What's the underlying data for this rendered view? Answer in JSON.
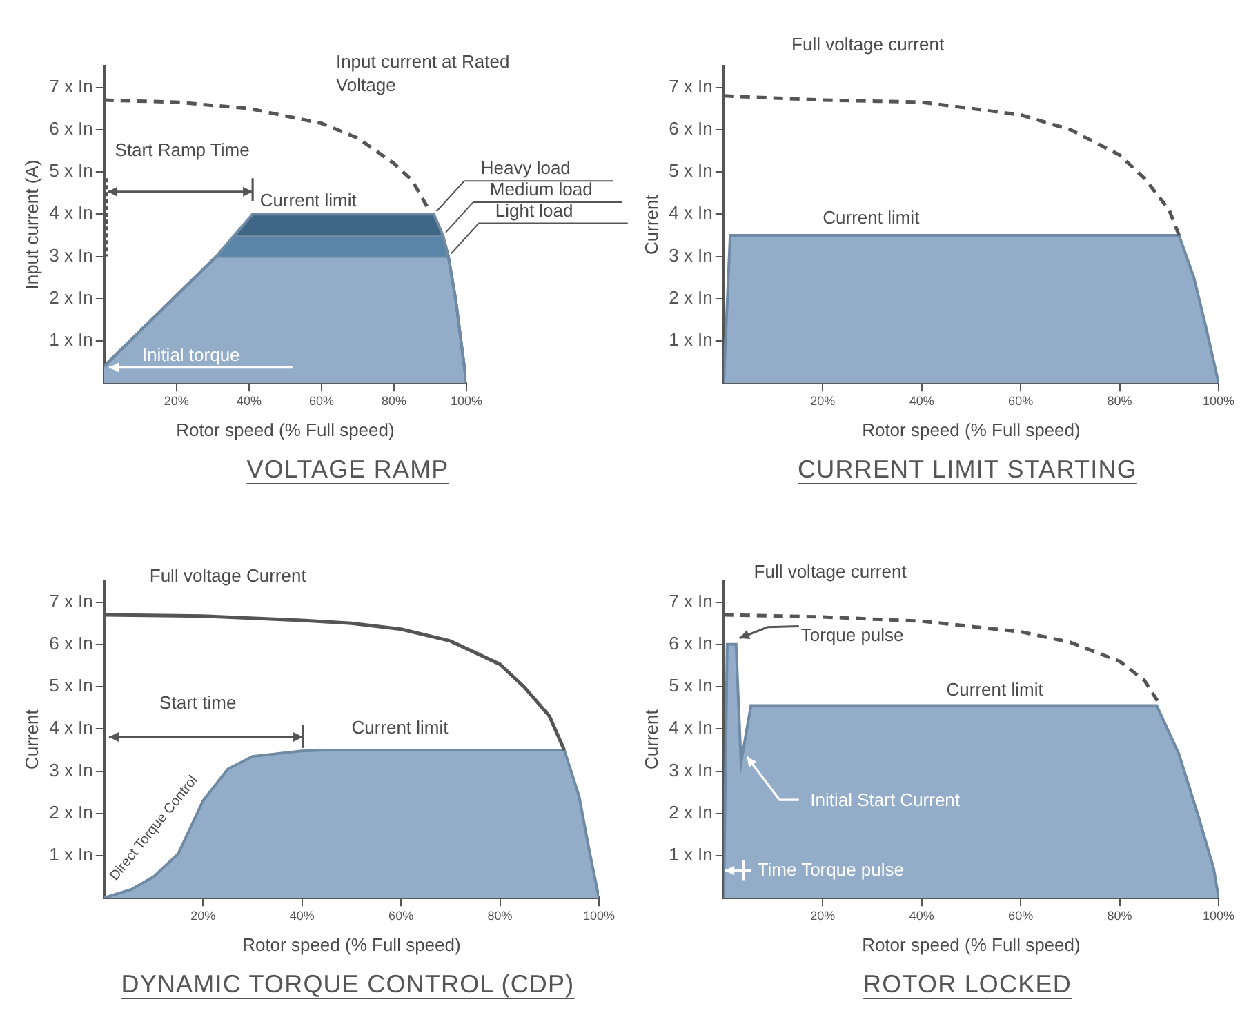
{
  "chart_data": [
    {
      "type": "area",
      "title": "VOLTAGE RAMP",
      "xlabel": "Rotor speed (% Full speed)",
      "ylabel": "Input current (A)",
      "xlim": [
        0,
        100
      ],
      "xticks": [
        {
          "value": 20,
          "label": "20%"
        },
        {
          "value": 40,
          "label": "40%"
        },
        {
          "value": 60,
          "label": "60%"
        },
        {
          "value": 80,
          "label": "80%"
        },
        {
          "value": 100,
          "label": "100%"
        }
      ],
      "ylim": [
        0,
        7.5
      ],
      "yticks": [
        {
          "value": 1,
          "label": "1 x In"
        },
        {
          "value": 2,
          "label": "2 x In"
        },
        {
          "value": 3,
          "label": "3 x In"
        },
        {
          "value": 4,
          "label": "4 x In"
        },
        {
          "value": 5,
          "label": "5 x In"
        },
        {
          "value": 6,
          "label": "6 x In"
        },
        {
          "value": 7,
          "label": "7 x In"
        }
      ],
      "series": [
        {
          "type": "line",
          "line_style": "dashed",
          "color": "#555555",
          "x": [
            0,
            20,
            40,
            60,
            70,
            80,
            85,
            90
          ],
          "values": [
            6.7,
            6.65,
            6.5,
            6.15,
            5.8,
            5.2,
            4.8,
            4.05
          ]
        },
        {
          "name": "Heavy load",
          "color": "#3f6685",
          "x": [
            0,
            31,
            36,
            41,
            91,
            93.5,
            95,
            97,
            98.5,
            100
          ],
          "values": [
            0.4,
            3,
            3.5,
            4,
            4,
            3.5,
            3,
            2,
            1,
            0
          ]
        },
        {
          "name": "Medium load",
          "color": "#5a85a8",
          "x": [
            0,
            31,
            36,
            41,
            91,
            93.5,
            95,
            97,
            98.5,
            100
          ],
          "values": [
            0.4,
            3,
            3.5,
            3.5,
            3.5,
            3.5,
            3,
            2,
            1,
            0
          ]
        },
        {
          "name": "Light load",
          "color": "#93adc9",
          "x": [
            0,
            31,
            36,
            41,
            91,
            93.5,
            95,
            97,
            98.5,
            100
          ],
          "values": [
            0.4,
            3,
            3,
            3,
            3,
            3,
            3,
            2,
            1,
            0
          ]
        }
      ],
      "annotations": [
        "Input current at Rated Voltage",
        "Start Ramp Time",
        "Current limit",
        "Initial torque"
      ]
    },
    {
      "type": "area",
      "title": "CURRENT LIMIT STARTING",
      "xlabel": "Rotor speed (% Full speed)",
      "ylabel": "Current",
      "xlim": [
        0,
        100
      ],
      "xticks": [
        {
          "value": 20,
          "label": "20%"
        },
        {
          "value": 40,
          "label": "40%"
        },
        {
          "value": 60,
          "label": "60%"
        },
        {
          "value": 80,
          "label": "80%"
        },
        {
          "value": 100,
          "label": "100%"
        }
      ],
      "ylim": [
        0,
        7.5
      ],
      "yticks": [
        {
          "value": 1,
          "label": "1 x In"
        },
        {
          "value": 2,
          "label": "2 x In"
        },
        {
          "value": 3,
          "label": "3 x In"
        },
        {
          "value": 4,
          "label": "4 x In"
        },
        {
          "value": 5,
          "label": "5 x In"
        },
        {
          "value": 6,
          "label": "6 x In"
        },
        {
          "value": 7,
          "label": "7 x In"
        }
      ],
      "series": [
        {
          "type": "line",
          "line_style": "dashed",
          "color": "#555555",
          "x": [
            0,
            20,
            40,
            60,
            70,
            80,
            85,
            90,
            92
          ],
          "values": [
            6.8,
            6.7,
            6.65,
            6.35,
            6.0,
            5.4,
            4.85,
            4.1,
            3.5
          ]
        },
        {
          "color": "#93adc9",
          "x": [
            0,
            1.3,
            92,
            95,
            97.5,
            100
          ],
          "values": [
            0,
            3.5,
            3.5,
            2.5,
            1.3,
            0
          ]
        }
      ],
      "annotations": [
        "Full voltage current",
        "Current limit"
      ]
    },
    {
      "type": "area",
      "title": "DYNAMIC TORQUE CONTROL (CDP)",
      "xlabel": "Rotor speed (% Full speed)",
      "ylabel": "Current",
      "xlim": [
        0,
        100
      ],
      "xticks": [
        {
          "value": 20,
          "label": "20%"
        },
        {
          "value": 40,
          "label": "40%"
        },
        {
          "value": 60,
          "label": "60%"
        },
        {
          "value": 80,
          "label": "80%"
        },
        {
          "value": 100,
          "label": "100%"
        }
      ],
      "ylim": [
        0,
        7.5
      ],
      "yticks": [
        {
          "value": 1,
          "label": "1 x In"
        },
        {
          "value": 2,
          "label": "2 x In"
        },
        {
          "value": 3,
          "label": "3 x In"
        },
        {
          "value": 4,
          "label": "4 x In"
        },
        {
          "value": 5,
          "label": "5 x In"
        },
        {
          "value": 6,
          "label": "6 x In"
        },
        {
          "value": 7,
          "label": "7 x In"
        }
      ],
      "series": [
        {
          "type": "line",
          "line_style": "solid",
          "color": "#555555",
          "x": [
            0,
            20,
            40,
            50,
            60,
            70,
            80,
            85,
            90,
            93
          ],
          "values": [
            6.7,
            6.67,
            6.57,
            6.5,
            6.36,
            6.08,
            5.53,
            4.98,
            4.3,
            3.5
          ]
        },
        {
          "color": "#93adc9",
          "x": [
            0,
            5.5,
            10,
            15,
            18,
            20,
            25,
            30,
            40,
            45,
            93,
            96,
            98,
            100
          ],
          "values": [
            0,
            0.2,
            0.5,
            1.05,
            1.8,
            2.3,
            3.05,
            3.35,
            3.48,
            3.5,
            3.5,
            2.4,
            1.15,
            0
          ]
        }
      ],
      "annotations": [
        "Full voltage Current",
        "Start time",
        "Current limit",
        "Direct Torque Control"
      ]
    },
    {
      "type": "area",
      "title": "ROTOR LOCKED",
      "xlabel": "Rotor speed (% Full speed)",
      "ylabel": "Current",
      "xlim": [
        0,
        100
      ],
      "xticks": [
        {
          "value": 20,
          "label": "20%"
        },
        {
          "value": 40,
          "label": "40%"
        },
        {
          "value": 60,
          "label": "60%"
        },
        {
          "value": 80,
          "label": "80%"
        },
        {
          "value": 100,
          "label": "100%"
        }
      ],
      "ylim": [
        0,
        7.5
      ],
      "yticks": [
        {
          "value": 1,
          "label": "1 x In"
        },
        {
          "value": 2,
          "label": "2 x In"
        },
        {
          "value": 3,
          "label": "3 x In"
        },
        {
          "value": 4,
          "label": "4 x In"
        },
        {
          "value": 5,
          "label": "5 x In"
        },
        {
          "value": 6,
          "label": "6 x In"
        },
        {
          "value": 7,
          "label": "7 x In"
        }
      ],
      "series": [
        {
          "type": "line",
          "line_style": "dashed",
          "color": "#555555",
          "x": [
            0,
            20,
            40,
            60,
            70,
            80,
            85,
            88
          ],
          "values": [
            6.7,
            6.65,
            6.55,
            6.3,
            6.05,
            5.6,
            5.15,
            4.6
          ]
        },
        {
          "color": "#93adc9",
          "x": [
            0,
            0.7,
            2.5,
            3.5,
            5.5,
            87.5,
            92,
            96,
            99,
            100
          ],
          "values": [
            0,
            6,
            6,
            3.2,
            4.55,
            4.55,
            3.4,
            1.9,
            0.7,
            0
          ]
        }
      ],
      "annotations": [
        "Full voltage current",
        "Torque pulse",
        "Current limit",
        "Initial Start Current",
        "Time Torque pulse"
      ]
    }
  ]
}
